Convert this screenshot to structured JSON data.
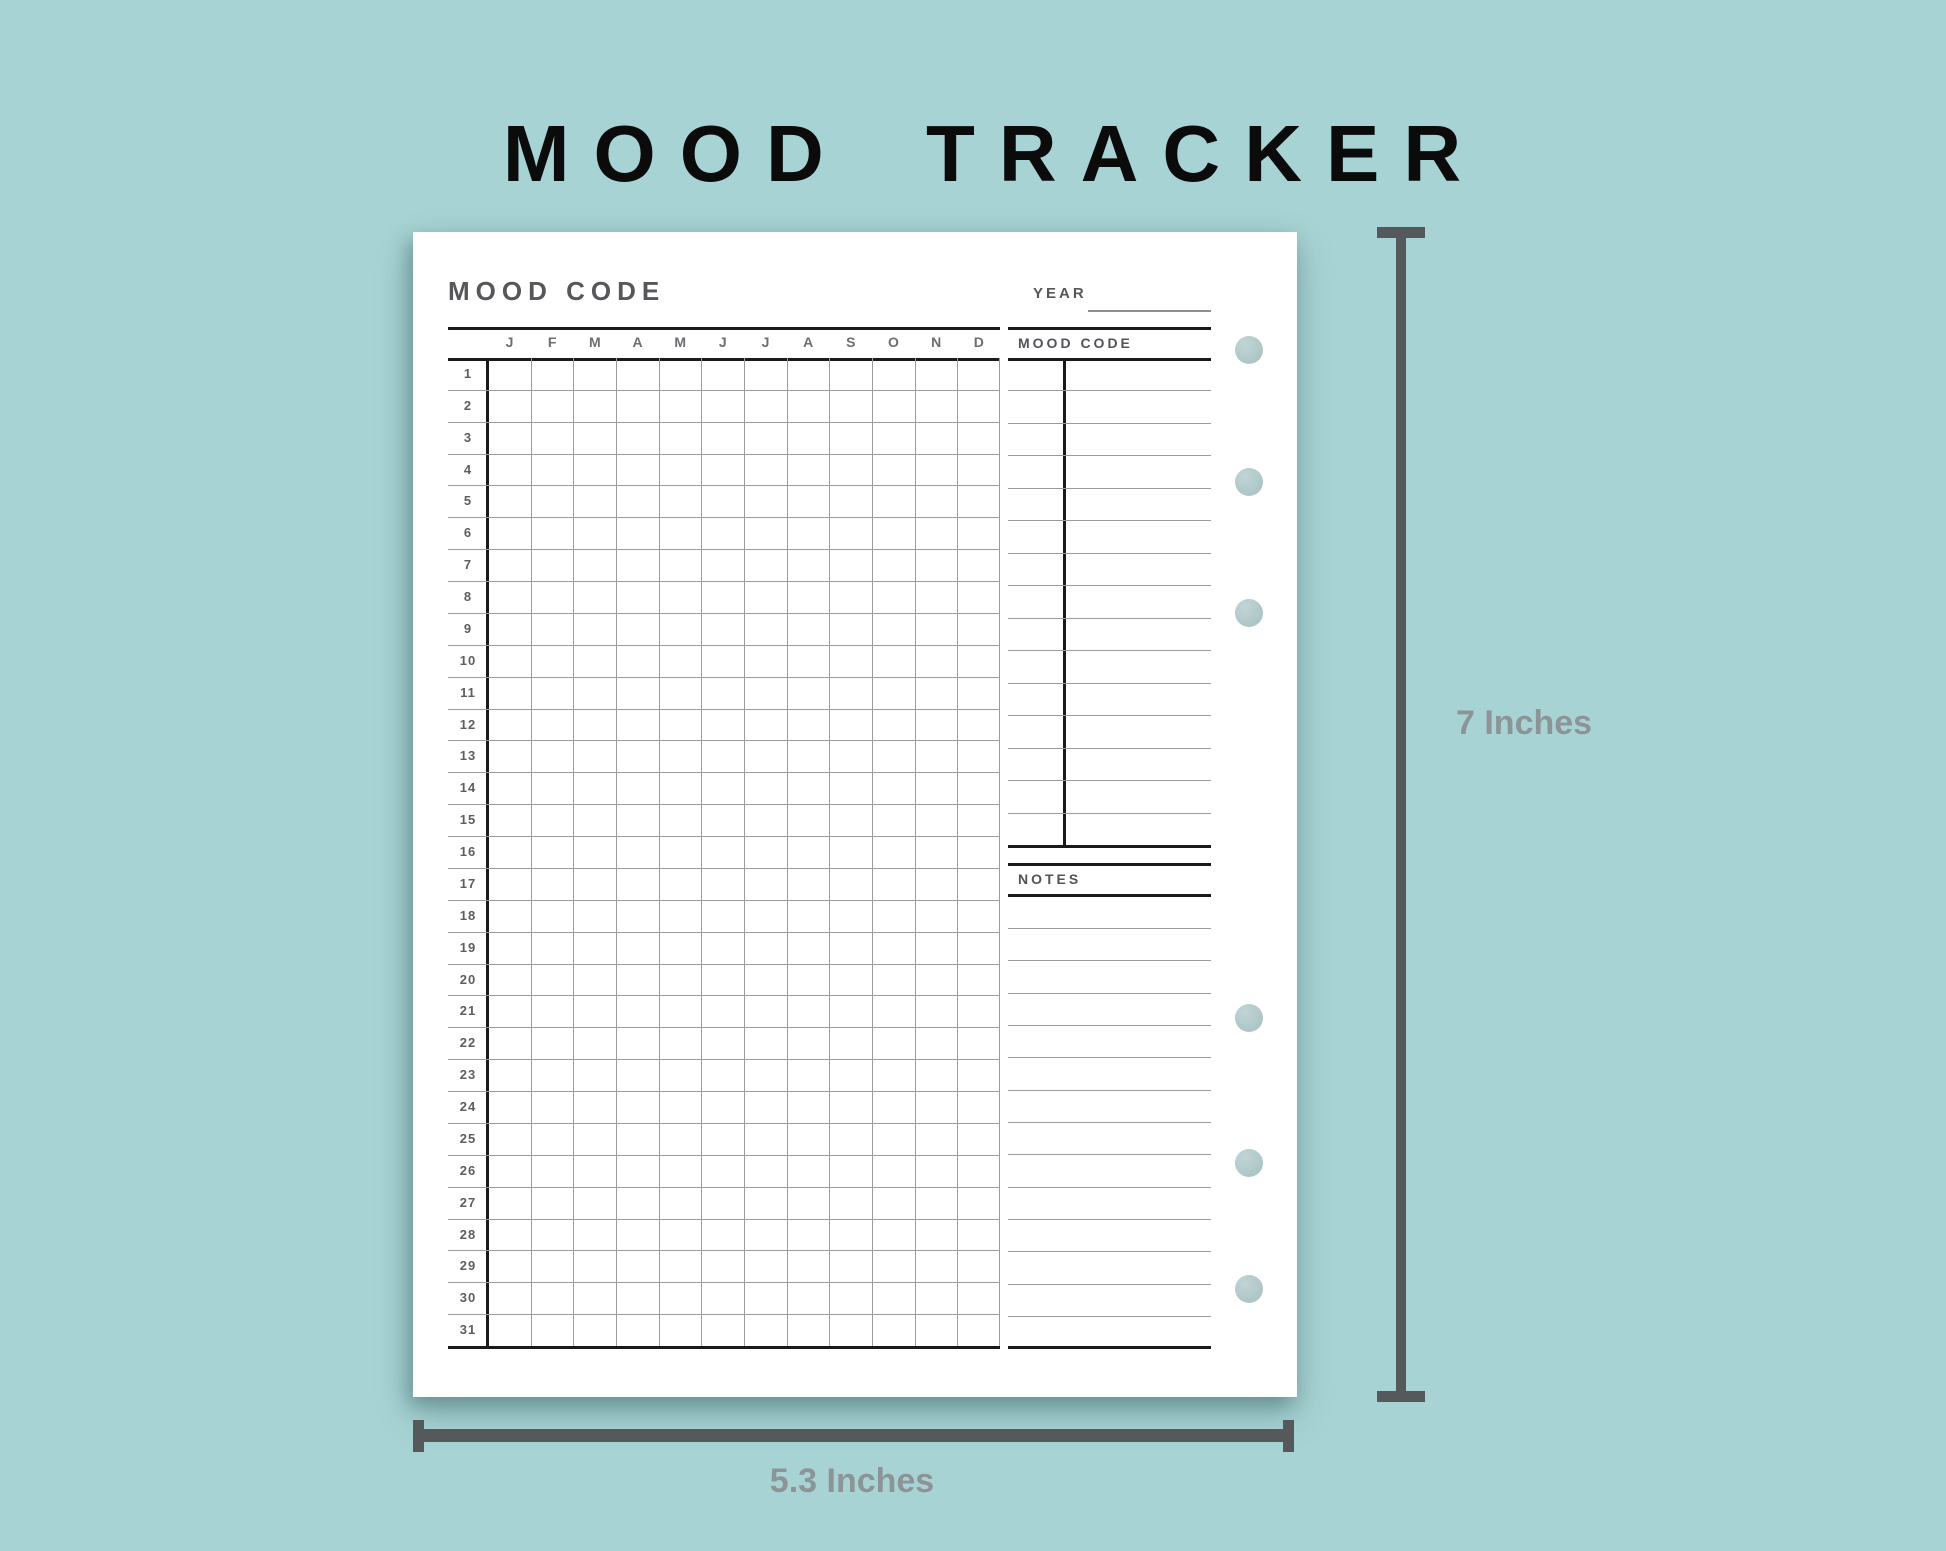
{
  "header": {
    "title": "MOOD TRACKER"
  },
  "page": {
    "heading": "MOOD CODE",
    "year": {
      "label": "YEAR",
      "value": ""
    },
    "calendar": {
      "months": [
        "J",
        "F",
        "M",
        "A",
        "M",
        "J",
        "J",
        "A",
        "S",
        "O",
        "N",
        "D"
      ],
      "days": [
        "1",
        "2",
        "3",
        "4",
        "5",
        "6",
        "7",
        "8",
        "9",
        "10",
        "11",
        "12",
        "13",
        "14",
        "15",
        "16",
        "17",
        "18",
        "19",
        "20",
        "21",
        "22",
        "23",
        "24",
        "25",
        "26",
        "27",
        "28",
        "29",
        "30",
        "31"
      ]
    },
    "mood_code_section": {
      "label": "MOOD CODE",
      "ruled_lines": 14
    },
    "notes_section": {
      "label": "NOTES",
      "ruled_lines": 13
    },
    "binder_holes": 6
  },
  "dimensions": {
    "height_label": "7 Inches",
    "width_label": "5.3 Inches"
  },
  "colors": {
    "background": "#a7d3d4",
    "page": "#ffffff",
    "line_dark": "#1a1a1a",
    "line_light": "#9b9b9b",
    "label_gray": "#55575a",
    "ruler_gray": "#56595b",
    "dimension_text_gray": "#8d9497",
    "hole_teal": "#b2c9ca"
  }
}
